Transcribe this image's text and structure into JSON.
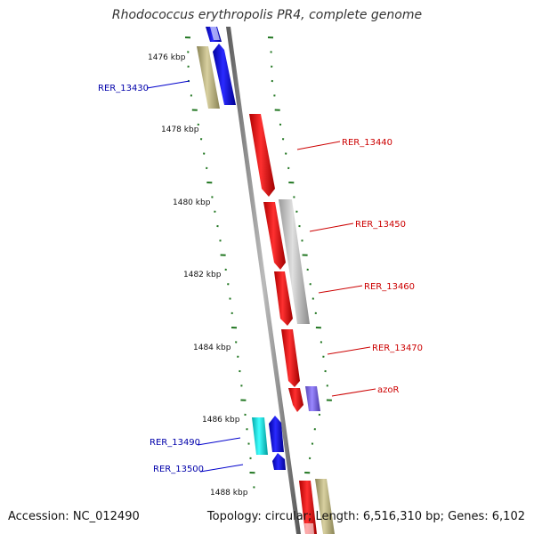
{
  "title": "Rhodococcus erythropolis PR4, complete genome",
  "footer": {
    "accession": "Accession: NC_012490",
    "summary": "Topology: circular; Length: 6,516,310 bp; Genes: 6,102"
  },
  "colors": {
    "forward": "#ff0000",
    "reverse": "#0000ee",
    "backbone": "#888888",
    "tick": "#227722",
    "label_forward": "#cc0000",
    "label_reverse": "#0000aa"
  },
  "kbp_labels": [
    "1476 kbp",
    "1478 kbp",
    "1480 kbp",
    "1482 kbp",
    "1484 kbp",
    "1486 kbp",
    "1488 kbp"
  ],
  "gene_labels": [
    {
      "text": "RER_13430",
      "strand": "reverse"
    },
    {
      "text": "RER_13440",
      "strand": "forward"
    },
    {
      "text": "RER_13450",
      "strand": "forward"
    },
    {
      "text": "RER_13460",
      "strand": "forward"
    },
    {
      "text": "RER_13470",
      "strand": "forward"
    },
    {
      "text": "azoR",
      "strand": "forward"
    },
    {
      "text": "RER_13490",
      "strand": "reverse"
    },
    {
      "text": "RER_13500",
      "strand": "reverse"
    }
  ]
}
